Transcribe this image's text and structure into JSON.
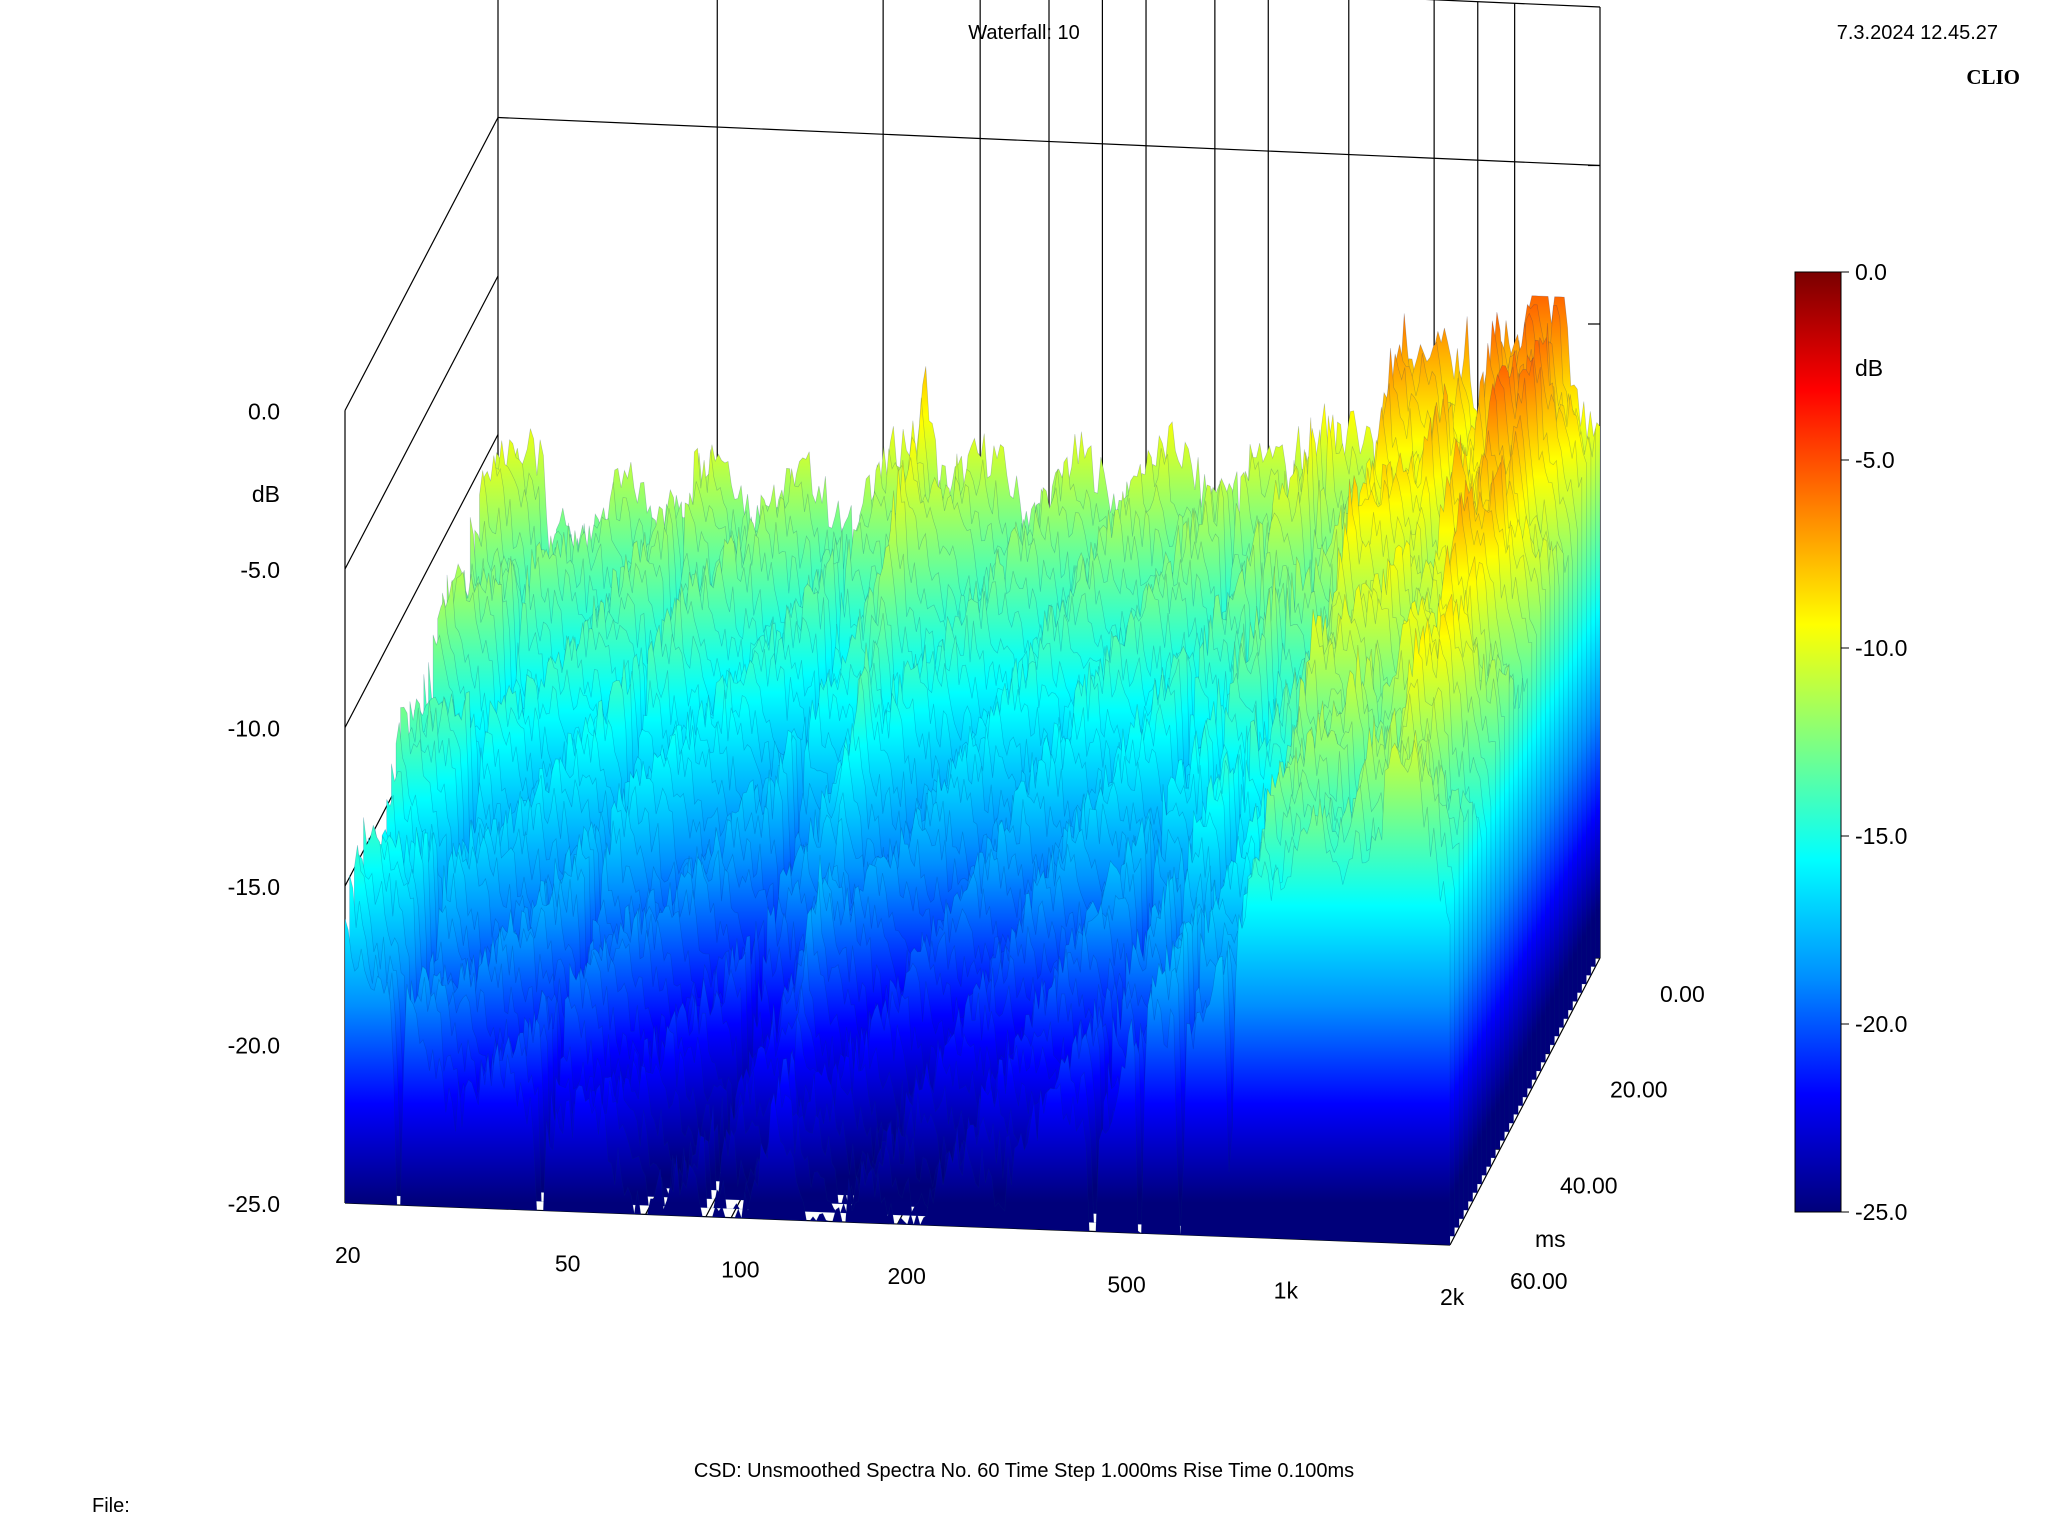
{
  "header": {
    "title": "Waterfall: 10",
    "timestamp": "7.3.2024 12.45.27",
    "brand": "CLIO"
  },
  "footer": {
    "settings": "CSD:   Unsmoothed   Spectra No. 60   Time Step 1.000ms   Rise Time 0.100ms",
    "file_label": "File:"
  },
  "chart_data": {
    "type": "waterfall",
    "x_axis": {
      "scale": "log",
      "range": [
        20,
        2000
      ],
      "ticks": [
        20,
        50,
        100,
        200,
        500,
        1000,
        2000
      ],
      "tick_labels": [
        "20",
        "50",
        "100",
        "200",
        "500",
        "1k",
        "2k"
      ]
    },
    "z_axis": {
      "label": "ms",
      "range": [
        0,
        60
      ],
      "ticks": [
        0,
        20,
        40,
        60
      ],
      "tick_labels": [
        "0.00",
        "20.00",
        "40.00",
        "60.00"
      ]
    },
    "y_axis": {
      "label": "dB",
      "range": [
        -25,
        0
      ],
      "ticks": [
        0,
        -5,
        -10,
        -15,
        -20,
        -25
      ],
      "tick_labels": [
        "0.0",
        "-5.0",
        "-10.0",
        "-15.0",
        "-20.0",
        "-25.0"
      ]
    },
    "colorbar": {
      "label": "dB",
      "range": [
        -25,
        0
      ],
      "tick_labels": [
        "0.0",
        "-5.0",
        "-10.0",
        "-15.0",
        "-20.0",
        "-25.0"
      ],
      "colors": [
        "#00007a",
        "#0000ff",
        "#0090ff",
        "#00ffff",
        "#80ff80",
        "#ffff00",
        "#ff8000",
        "#ff0000",
        "#7a0000"
      ]
    },
    "front_spectrum": {
      "freq": [
        20,
        25,
        30,
        40,
        50,
        60,
        80,
        100,
        120,
        150,
        200,
        250,
        300,
        400,
        500,
        600,
        700,
        800,
        1000,
        1200,
        1400,
        1600,
        1800,
        2000
      ],
      "db": [
        -10.5,
        -12.0,
        -12.8,
        -11.6,
        -11.0,
        -11.4,
        -11.8,
        -11.2,
        -9.6,
        -10.8,
        -11.0,
        -10.6,
        -10.4,
        -10.2,
        -10.3,
        -9.0,
        -9.8,
        -8.8,
        -6.4,
        -8.4,
        -7.0,
        -5.2,
        -6.6,
        -8.6
      ]
    },
    "resonance_peaks_hz": [
      120,
      550,
      650,
      900,
      1150,
      1350,
      1550,
      1700
    ],
    "deep_notches_hz": [
      25,
      45,
      90,
      450,
      550,
      650,
      800
    ],
    "spectra_count": 60,
    "time_step_ms": 1.0,
    "rise_time_ms": 0.1,
    "smoothing": "Unsmoothed"
  }
}
